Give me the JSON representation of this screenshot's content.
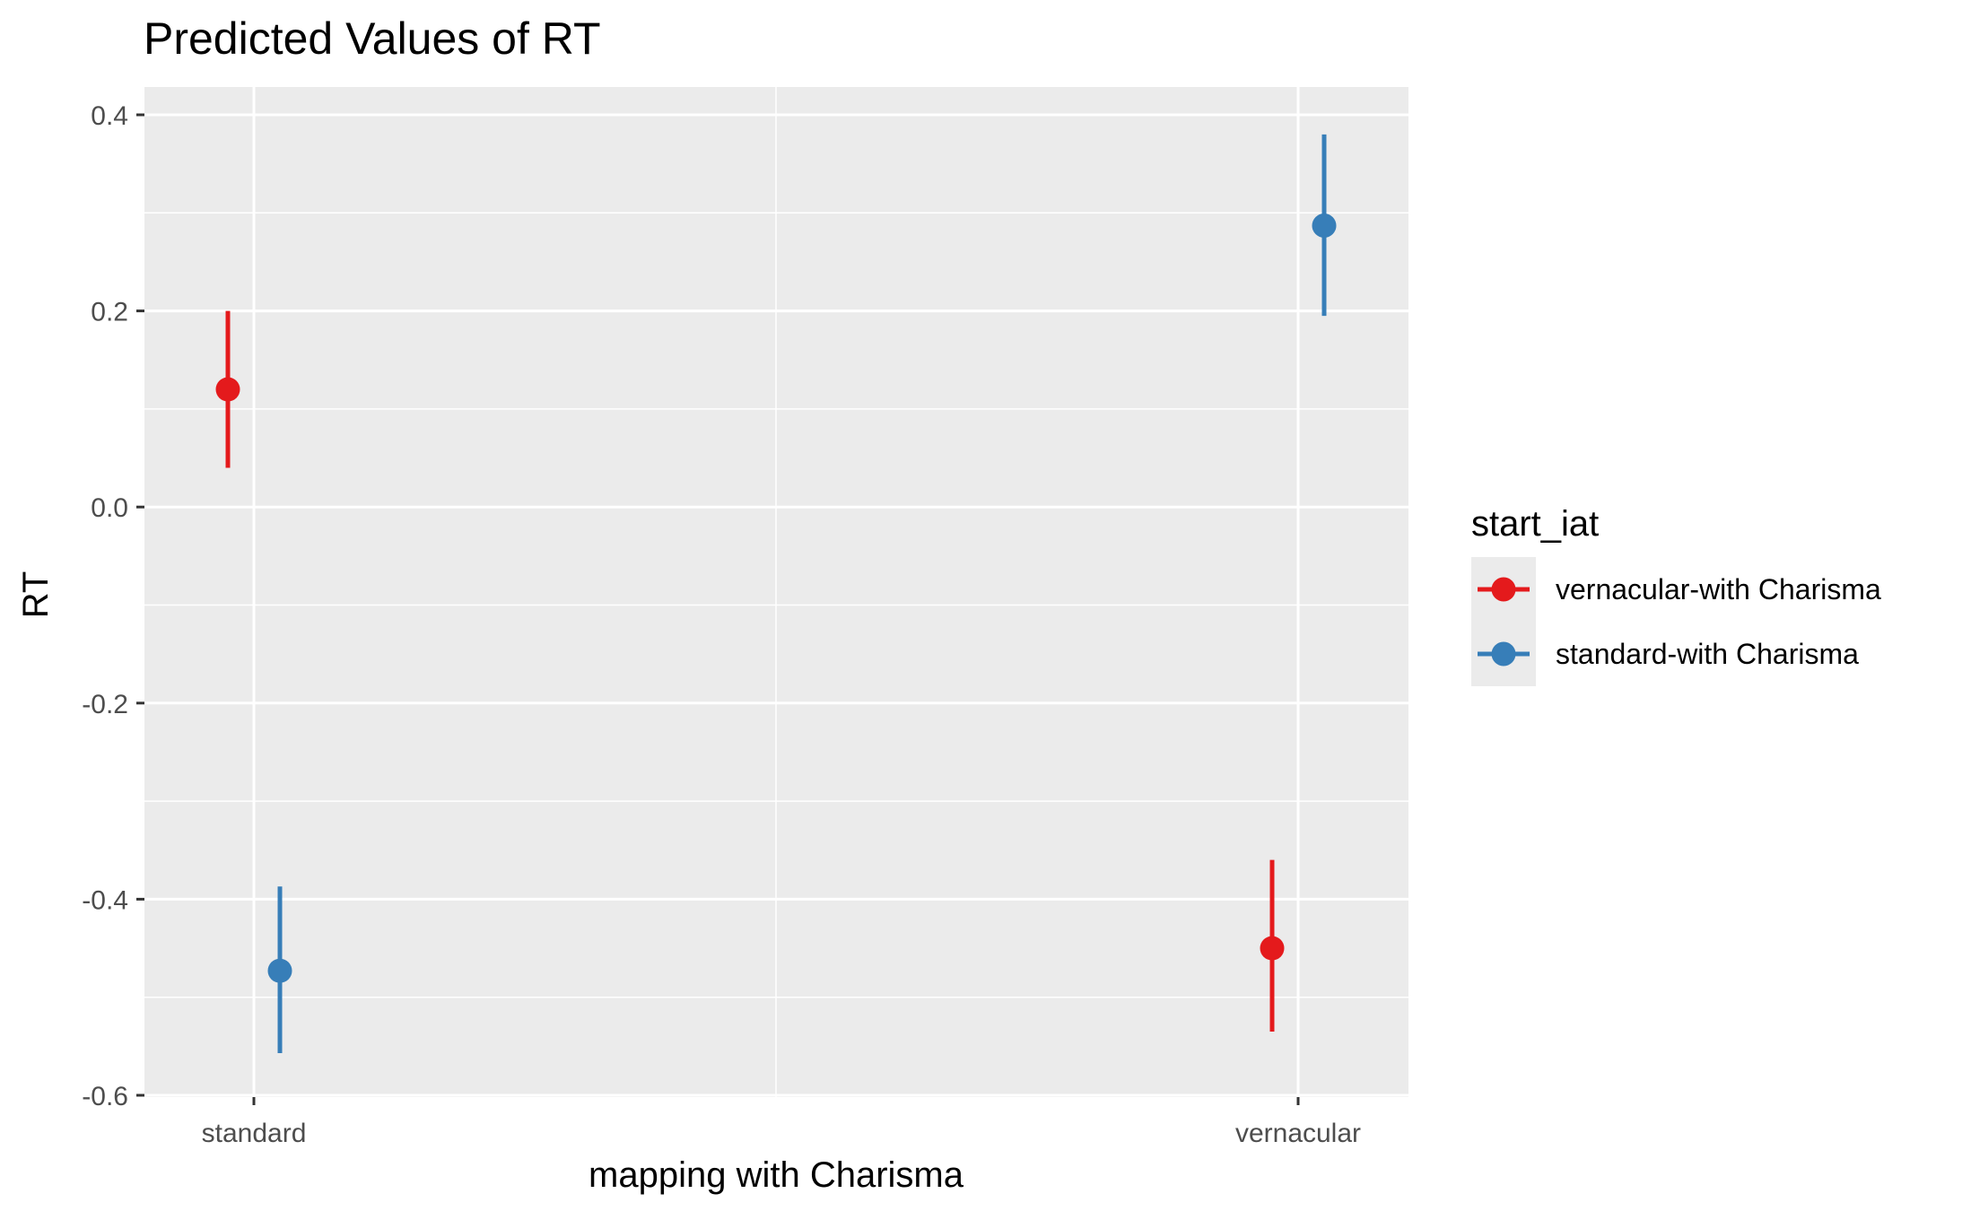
{
  "chart_data": {
    "type": "scatter",
    "title": "Predicted Values of RT",
    "xlabel": "mapping with Charisma",
    "ylabel": "RT",
    "categories": [
      "standard",
      "vernacular"
    ],
    "ylim": [
      -0.6,
      0.4
    ],
    "yticks": [
      -0.6,
      -0.4,
      -0.2,
      0.0,
      0.2,
      0.4
    ],
    "ytick_labels": [
      "-0.6",
      "-0.4",
      "-0.2",
      "0.0",
      "0.2",
      "0.4"
    ],
    "grid": true,
    "legend": {
      "title": "start_iat",
      "position": "right"
    },
    "series": [
      {
        "name": "vernacular-with Charisma",
        "color": "#e41a1c",
        "points": [
          {
            "x": "standard",
            "y": 0.12,
            "ymin": 0.04,
            "ymax": 0.2
          },
          {
            "x": "vernacular",
            "y": -0.45,
            "ymin": -0.535,
            "ymax": -0.36
          }
        ]
      },
      {
        "name": "standard-with Charisma",
        "color": "#377eb8",
        "points": [
          {
            "x": "standard",
            "y": -0.473,
            "ymin": -0.557,
            "ymax": -0.387
          },
          {
            "x": "vernacular",
            "y": 0.287,
            "ymin": 0.195,
            "ymax": 0.38
          }
        ]
      }
    ]
  }
}
